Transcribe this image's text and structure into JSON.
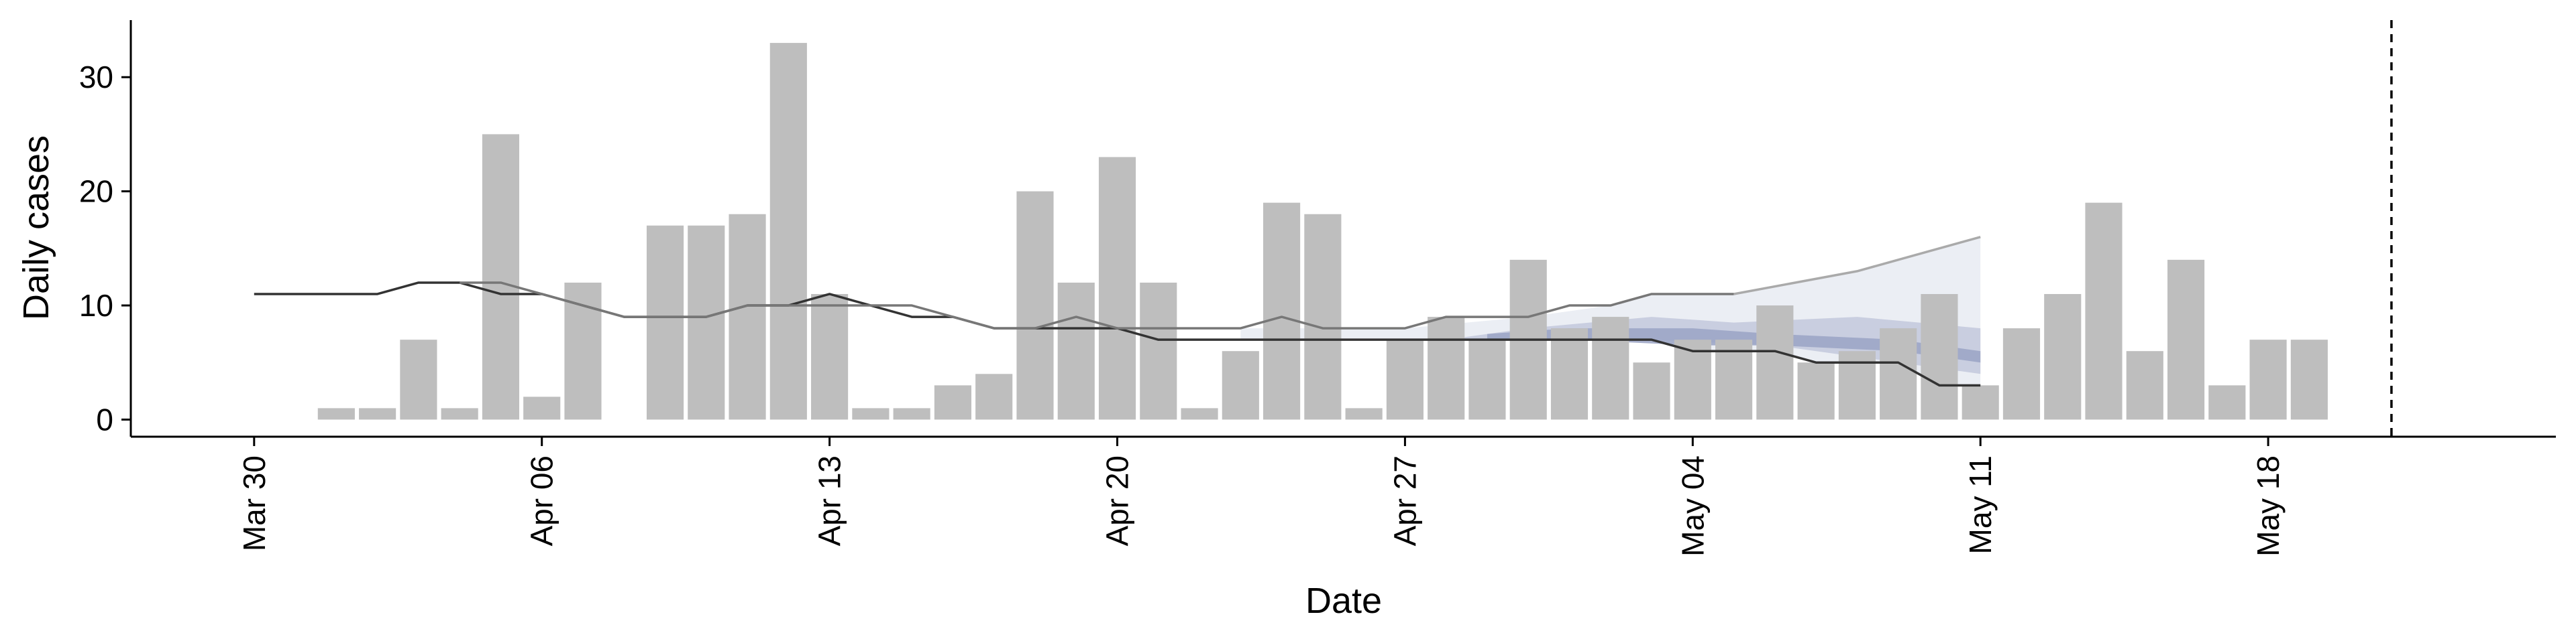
{
  "chart_data": {
    "type": "bar",
    "title": "",
    "xlabel": "Date",
    "ylabel": "Daily cases",
    "ylim": [
      -1.5,
      35
    ],
    "yticks": [
      0,
      10,
      20,
      30
    ],
    "xticks": [
      "2020-03-30",
      "2020-04-06",
      "2020-04-13",
      "2020-04-20",
      "2020-04-27",
      "2020-05-04",
      "2020-05-11",
      "2020-05-18"
    ],
    "xtick_labels": [
      "Mar 30",
      "Apr 06",
      "Apr 13",
      "Apr 20",
      "Apr 27",
      "May 04",
      "May 11",
      "May 18"
    ],
    "xlim": [
      "2020-03-27",
      "2020-05-25"
    ],
    "grid": false,
    "legend": "none",
    "bar_color": "#bebebe",
    "dates": [
      "2020-03-30",
      "2020-03-31",
      "2020-04-01",
      "2020-04-02",
      "2020-04-03",
      "2020-04-04",
      "2020-04-05",
      "2020-04-06",
      "2020-04-07",
      "2020-04-08",
      "2020-04-09",
      "2020-04-10",
      "2020-04-11",
      "2020-04-12",
      "2020-04-13",
      "2020-04-14",
      "2020-04-15",
      "2020-04-16",
      "2020-04-17",
      "2020-04-18",
      "2020-04-19",
      "2020-04-20",
      "2020-04-21",
      "2020-04-22",
      "2020-04-23",
      "2020-04-24",
      "2020-04-25",
      "2020-04-26",
      "2020-04-27",
      "2020-04-28",
      "2020-04-29",
      "2020-04-30",
      "2020-05-01",
      "2020-05-02",
      "2020-05-03",
      "2020-05-04",
      "2020-05-05",
      "2020-05-06",
      "2020-05-07",
      "2020-05-08",
      "2020-05-09",
      "2020-05-10",
      "2020-05-11",
      "2020-05-12",
      "2020-05-13",
      "2020-05-14",
      "2020-05-15",
      "2020-05-16",
      "2020-05-17",
      "2020-05-18",
      "2020-05-19",
      "2020-05-20"
    ],
    "values": [
      0,
      0,
      1,
      1,
      7,
      1,
      25,
      2,
      12,
      0,
      17,
      17,
      18,
      33,
      11,
      1,
      1,
      3,
      4,
      20,
      12,
      23,
      12,
      1,
      6,
      19,
      18,
      1,
      7,
      9,
      7,
      14,
      8,
      9,
      5,
      7,
      7,
      10,
      5,
      6,
      8,
      11,
      3,
      8,
      11,
      19,
      6,
      14,
      3,
      7,
      7,
      0
    ],
    "lines": [
      {
        "color": "#333333",
        "points": [
          [
            "2020-03-30",
            11
          ],
          [
            "2020-04-02",
            11
          ],
          [
            "2020-04-03",
            12
          ],
          [
            "2020-04-04",
            12
          ],
          [
            "2020-04-05",
            11
          ],
          [
            "2020-04-06",
            11
          ],
          [
            "2020-04-07",
            10
          ],
          [
            "2020-04-08",
            9
          ],
          [
            "2020-04-10",
            9
          ],
          [
            "2020-04-11",
            10
          ],
          [
            "2020-04-12",
            10
          ],
          [
            "2020-04-13",
            11
          ],
          [
            "2020-04-14",
            10
          ],
          [
            "2020-04-15",
            9
          ],
          [
            "2020-04-16",
            9
          ],
          [
            "2020-04-17",
            8
          ],
          [
            "2020-04-18",
            8
          ],
          [
            "2020-04-19",
            8
          ],
          [
            "2020-04-20",
            8
          ],
          [
            "2020-04-21",
            7
          ],
          [
            "2020-04-27",
            7
          ],
          [
            "2020-05-03",
            7
          ],
          [
            "2020-05-04",
            6
          ],
          [
            "2020-05-06",
            6
          ],
          [
            "2020-05-07",
            5
          ],
          [
            "2020-05-09",
            5
          ],
          [
            "2020-05-10",
            3
          ],
          [
            "2020-05-11",
            3
          ]
        ]
      },
      {
        "color": "#777777",
        "points": [
          [
            "2020-04-04",
            12
          ],
          [
            "2020-04-05",
            12
          ],
          [
            "2020-04-06",
            11
          ],
          [
            "2020-04-07",
            10
          ],
          [
            "2020-04-08",
            9
          ],
          [
            "2020-04-10",
            9
          ],
          [
            "2020-04-11",
            10
          ],
          [
            "2020-04-14",
            10
          ],
          [
            "2020-04-15",
            10
          ],
          [
            "2020-04-16",
            9
          ],
          [
            "2020-04-17",
            8
          ],
          [
            "2020-04-18",
            8
          ],
          [
            "2020-04-19",
            9
          ],
          [
            "2020-04-20",
            8
          ],
          [
            "2020-04-23",
            8
          ],
          [
            "2020-04-24",
            9
          ],
          [
            "2020-04-25",
            8
          ],
          [
            "2020-04-27",
            8
          ],
          [
            "2020-04-28",
            9
          ],
          [
            "2020-04-30",
            9
          ],
          [
            "2020-05-01",
            10
          ],
          [
            "2020-05-02",
            10
          ],
          [
            "2020-05-03",
            11
          ],
          [
            "2020-05-05",
            11
          ]
        ]
      },
      {
        "color": "#aaaaaa",
        "points": [
          [
            "2020-05-05",
            11
          ],
          [
            "2020-05-08",
            13
          ],
          [
            "2020-05-10",
            15
          ],
          [
            "2020-05-11",
            16
          ]
        ]
      }
    ],
    "bands": [
      {
        "color": "#e8ebf2",
        "upper": [
          [
            "2020-04-23",
            8
          ],
          [
            "2020-04-27",
            8
          ],
          [
            "2020-04-30",
            9
          ],
          [
            "2020-05-02",
            10
          ],
          [
            "2020-05-03",
            11
          ],
          [
            "2020-05-05",
            11
          ],
          [
            "2020-05-08",
            13
          ],
          [
            "2020-05-10",
            15
          ],
          [
            "2020-05-11",
            16
          ]
        ],
        "lower": [
          [
            "2020-04-23",
            7
          ],
          [
            "2020-04-27",
            7
          ],
          [
            "2020-05-03",
            7
          ],
          [
            "2020-05-04",
            6
          ],
          [
            "2020-05-06",
            6
          ],
          [
            "2020-05-07",
            5
          ],
          [
            "2020-05-09",
            5
          ],
          [
            "2020-05-10",
            3
          ],
          [
            "2020-05-11",
            3
          ]
        ]
      },
      {
        "color": "#c3c8dc",
        "upper": [
          [
            "2020-04-28",
            7
          ],
          [
            "2020-04-30",
            8
          ],
          [
            "2020-05-03",
            9
          ],
          [
            "2020-05-05",
            8.5
          ],
          [
            "2020-05-08",
            9
          ],
          [
            "2020-05-11",
            8
          ]
        ],
        "lower": [
          [
            "2020-04-28",
            7
          ],
          [
            "2020-05-01",
            7
          ],
          [
            "2020-05-03",
            7
          ],
          [
            "2020-05-06",
            6.5
          ],
          [
            "2020-05-08",
            5.5
          ],
          [
            "2020-05-11",
            4
          ]
        ]
      },
      {
        "color": "#9aa3c4",
        "upper": [
          [
            "2020-04-29",
            7.5
          ],
          [
            "2020-05-01",
            8
          ],
          [
            "2020-05-04",
            8
          ],
          [
            "2020-05-06",
            7.5
          ],
          [
            "2020-05-09",
            7
          ],
          [
            "2020-05-11",
            6
          ]
        ],
        "lower": [
          [
            "2020-04-29",
            7
          ],
          [
            "2020-05-01",
            7
          ],
          [
            "2020-05-04",
            6.5
          ],
          [
            "2020-05-06",
            6.5
          ],
          [
            "2020-05-09",
            6
          ],
          [
            "2020-05-11",
            5
          ]
        ]
      }
    ],
    "vline": {
      "date": "2020-05-21",
      "style": "dashed",
      "color": "#000000"
    }
  }
}
